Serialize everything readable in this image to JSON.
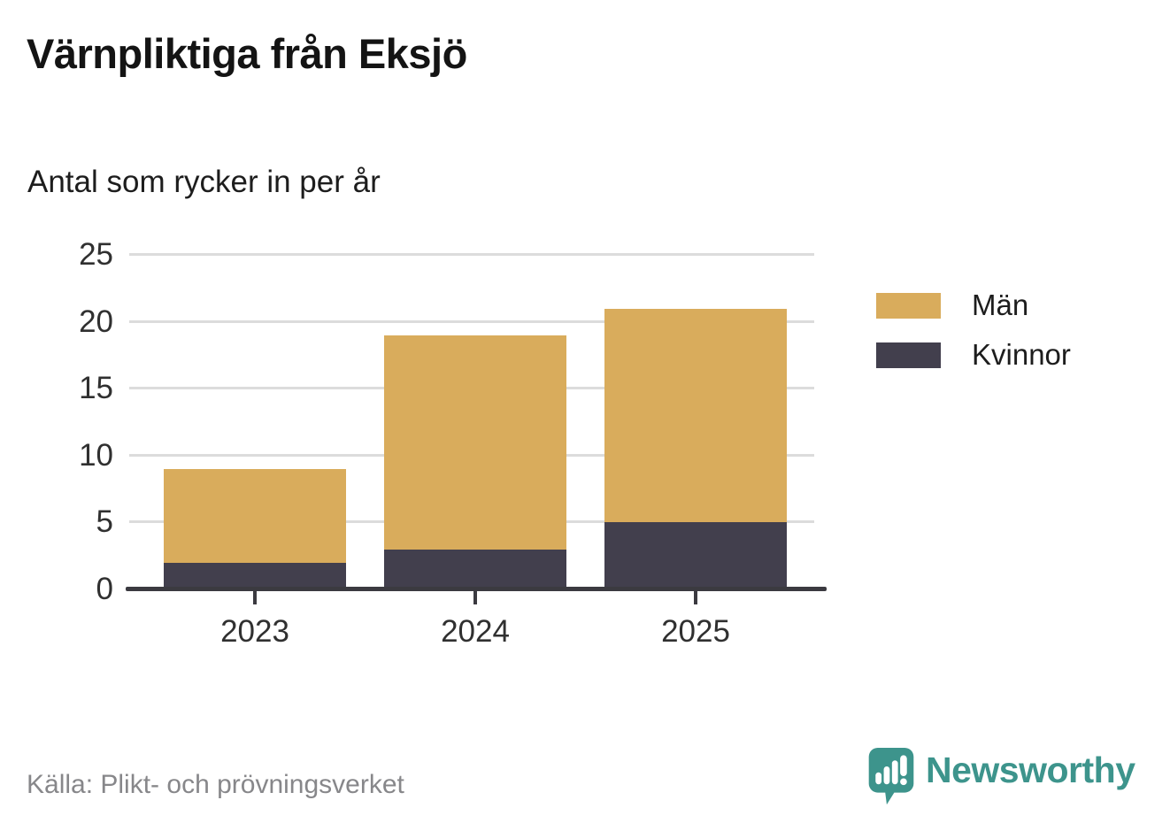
{
  "title": "Värnpliktiga från Eksjö",
  "subtitle": "Antal som rycker in per år",
  "source": "Källa: Plikt- och prövningsverket",
  "brand": {
    "name": "Newsworthy",
    "color": "#3d948c",
    "icon": "bar-chart-speech-bubble-icon"
  },
  "colors": {
    "men": "#d9ac5c",
    "women": "#423f4d",
    "axis": "#3b3a40",
    "grid": "#dcdcdc",
    "tick_text": "#303030",
    "source_text": "#87878a"
  },
  "chart_data": {
    "type": "bar",
    "stacked": true,
    "title": "Värnpliktiga från Eksjö",
    "subtitle": "Antal som rycker in per år",
    "categories": [
      "2023",
      "2024",
      "2025"
    ],
    "series": [
      {
        "name": "Män",
        "color": "#d9ac5c",
        "values": [
          7,
          16,
          16
        ]
      },
      {
        "name": "Kvinnor",
        "color": "#423f4d",
        "values": [
          2,
          3,
          5
        ]
      }
    ],
    "totals": [
      9,
      19,
      21
    ],
    "stack_order_bottom_to_top": [
      "Kvinnor",
      "Män"
    ],
    "yticks": [
      0,
      5,
      10,
      15,
      20,
      25
    ],
    "ylim": [
      0,
      25
    ],
    "xlabel": "",
    "ylabel": "",
    "grid": true,
    "legend_position": "right"
  }
}
